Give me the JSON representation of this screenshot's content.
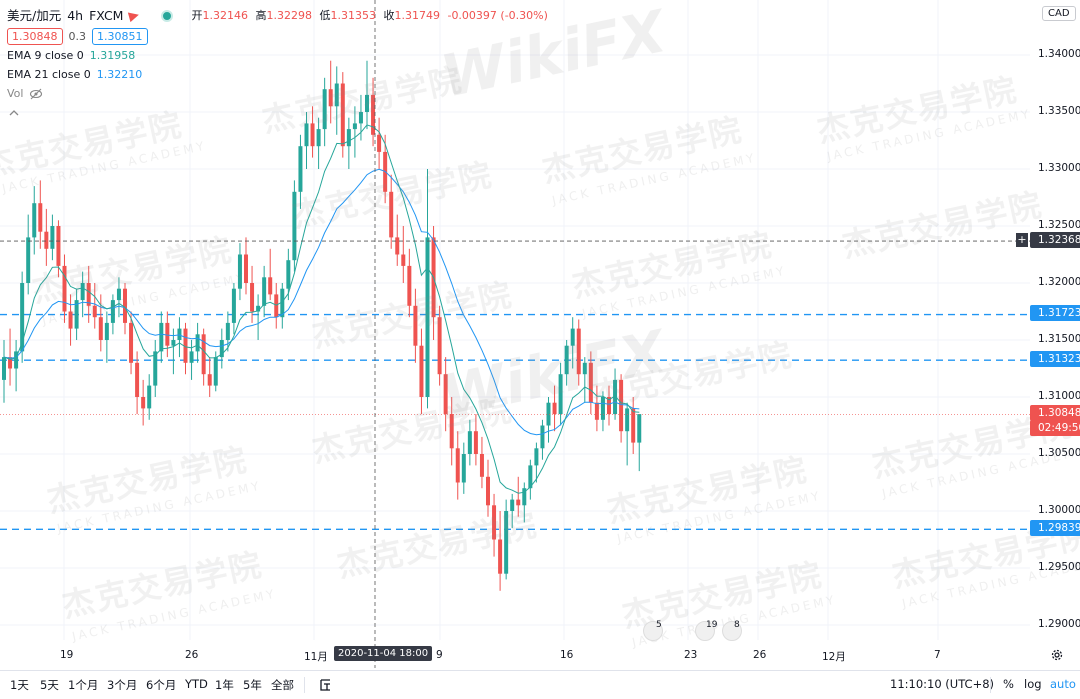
{
  "header": {
    "symbol": "美元/加元",
    "interval": "4h",
    "source": "FXCM",
    "ohlc": [
      {
        "k": "开",
        "v": "1.32146"
      },
      {
        "k": "高",
        "v": "1.32298"
      },
      {
        "k": "低",
        "v": "1.31353"
      },
      {
        "k": "收",
        "v": "1.31749"
      },
      {
        "k": "",
        "v": "-0.00397 (-0.30%)"
      }
    ]
  },
  "quote": {
    "bid": "1.30848",
    "spread": "0.3",
    "ask": "1.30851"
  },
  "indicators": {
    "ema9_label": "EMA 9 close 0",
    "ema9_value": "1.31958",
    "ema21_label": "EMA 21 close 0",
    "ema21_value": "1.32210",
    "vol_label": "Vol"
  },
  "currency": "CAD",
  "price_axis": [
    "1.34000",
    "1.33500",
    "1.33000",
    "1.32500",
    "1.32000",
    "1.31500",
    "1.31000",
    "1.30500",
    "1.30000",
    "1.29500",
    "1.29000"
  ],
  "price_labels": {
    "crosshair": "1.32368",
    "line1": "1.31723",
    "line2": "1.31323",
    "last": "1.30848",
    "countdown": "02:49:50",
    "line3": "1.29839"
  },
  "time_axis": [
    "19",
    "26",
    "11月",
    "9",
    "16",
    "23",
    "26",
    "12月",
    "7"
  ],
  "crosshair_time": "2020-11-04   18:00",
  "events": [
    "5",
    "19",
    "8"
  ],
  "bottom": {
    "ranges": [
      "1天",
      "5天",
      "1个月",
      "3个月",
      "6个月",
      "YTD",
      "1年",
      "5年",
      "全部"
    ],
    "clock": "11:10:10 (UTC+8)",
    "percent": "%",
    "log": "log",
    "auto": "auto"
  },
  "colors": {
    "up": "#26a69a",
    "down": "#ef5350",
    "ema9": "#26a69a",
    "ema21": "#2196f3",
    "hline": "#2196f3"
  },
  "watermark": {
    "cn": "杰克交易学院",
    "en": "JACK TRADING ACADEMY",
    "brand": "WikiFX"
  },
  "chart_data": {
    "type": "candlestick",
    "ylim": [
      1.2885,
      1.3425
    ],
    "hlines": [
      1.31723,
      1.31323,
      1.29839
    ],
    "crosshair_price": 1.32368,
    "last_price": 1.30848,
    "candles": [
      [
        1.3115,
        1.315,
        1.3095,
        1.3135
      ],
      [
        1.3135,
        1.316,
        1.311,
        1.3125
      ],
      [
        1.3125,
        1.315,
        1.3105,
        1.314
      ],
      [
        1.314,
        1.321,
        1.313,
        1.32
      ],
      [
        1.32,
        1.326,
        1.319,
        1.324
      ],
      [
        1.324,
        1.3285,
        1.3225,
        1.327
      ],
      [
        1.327,
        1.329,
        1.323,
        1.3245
      ],
      [
        1.3245,
        1.3265,
        1.3215,
        1.323
      ],
      [
        1.323,
        1.326,
        1.322,
        1.325
      ],
      [
        1.325,
        1.3255,
        1.3205,
        1.3215
      ],
      [
        1.3215,
        1.3225,
        1.3165,
        1.3175
      ],
      [
        1.3175,
        1.319,
        1.3145,
        1.316
      ],
      [
        1.316,
        1.3195,
        1.315,
        1.3185
      ],
      [
        1.3185,
        1.321,
        1.317,
        1.32
      ],
      [
        1.32,
        1.3215,
        1.3165,
        1.318
      ],
      [
        1.318,
        1.32,
        1.316,
        1.317
      ],
      [
        1.317,
        1.319,
        1.314,
        1.315
      ],
      [
        1.315,
        1.3175,
        1.313,
        1.3165
      ],
      [
        1.3165,
        1.319,
        1.3155,
        1.3185
      ],
      [
        1.3185,
        1.3205,
        1.317,
        1.3195
      ],
      [
        1.3195,
        1.32,
        1.3155,
        1.3165
      ],
      [
        1.3165,
        1.3175,
        1.312,
        1.313
      ],
      [
        1.313,
        1.314,
        1.3085,
        1.31
      ],
      [
        1.31,
        1.3115,
        1.3075,
        1.309
      ],
      [
        1.309,
        1.312,
        1.308,
        1.311
      ],
      [
        1.311,
        1.315,
        1.31,
        1.314
      ],
      [
        1.314,
        1.3175,
        1.313,
        1.3165
      ],
      [
        1.3165,
        1.3175,
        1.3135,
        1.3145
      ],
      [
        1.3145,
        1.316,
        1.312,
        1.315
      ],
      [
        1.315,
        1.317,
        1.3135,
        1.316
      ],
      [
        1.316,
        1.3165,
        1.312,
        1.313
      ],
      [
        1.313,
        1.315,
        1.3115,
        1.314
      ],
      [
        1.314,
        1.3165,
        1.313,
        1.3155
      ],
      [
        1.3155,
        1.316,
        1.311,
        1.312
      ],
      [
        1.312,
        1.3135,
        1.31,
        1.311
      ],
      [
        1.311,
        1.314,
        1.3105,
        1.3135
      ],
      [
        1.3135,
        1.316,
        1.3125,
        1.315
      ],
      [
        1.315,
        1.3175,
        1.314,
        1.3165
      ],
      [
        1.3165,
        1.32,
        1.3155,
        1.3195
      ],
      [
        1.3195,
        1.3235,
        1.3185,
        1.3225
      ],
      [
        1.3225,
        1.324,
        1.319,
        1.32
      ],
      [
        1.32,
        1.3215,
        1.3165,
        1.3175
      ],
      [
        1.3175,
        1.319,
        1.315,
        1.318
      ],
      [
        1.318,
        1.3215,
        1.317,
        1.3205
      ],
      [
        1.3205,
        1.323,
        1.3185,
        1.319
      ],
      [
        1.319,
        1.32,
        1.316,
        1.317
      ],
      [
        1.317,
        1.32,
        1.316,
        1.3195
      ],
      [
        1.3195,
        1.323,
        1.3185,
        1.322
      ],
      [
        1.322,
        1.329,
        1.321,
        1.328
      ],
      [
        1.328,
        1.333,
        1.3265,
        1.332
      ],
      [
        1.332,
        1.335,
        1.33,
        1.334
      ],
      [
        1.334,
        1.3355,
        1.331,
        1.332
      ],
      [
        1.332,
        1.3345,
        1.33,
        1.3335
      ],
      [
        1.3335,
        1.338,
        1.332,
        1.337
      ],
      [
        1.337,
        1.3395,
        1.334,
        1.3355
      ],
      [
        1.3355,
        1.339,
        1.333,
        1.3375
      ],
      [
        1.3375,
        1.3385,
        1.331,
        1.332
      ],
      [
        1.332,
        1.3345,
        1.33,
        1.3335
      ],
      [
        1.3335,
        1.3355,
        1.331,
        1.334
      ],
      [
        1.334,
        1.3365,
        1.3325,
        1.335
      ],
      [
        1.335,
        1.3395,
        1.3335,
        1.3365
      ],
      [
        1.3365,
        1.338,
        1.332,
        1.333
      ],
      [
        1.333,
        1.3345,
        1.33,
        1.3315
      ],
      [
        1.3315,
        1.333,
        1.327,
        1.328
      ],
      [
        1.328,
        1.3295,
        1.323,
        1.324
      ],
      [
        1.324,
        1.326,
        1.3215,
        1.3225
      ],
      [
        1.3225,
        1.325,
        1.32,
        1.3215
      ],
      [
        1.3215,
        1.323,
        1.317,
        1.318
      ],
      [
        1.318,
        1.3195,
        1.313,
        1.3145
      ],
      [
        1.3145,
        1.316,
        1.3085,
        1.31
      ],
      [
        1.31,
        1.33,
        1.309,
        1.324
      ],
      [
        1.324,
        1.325,
        1.315,
        1.317
      ],
      [
        1.317,
        1.318,
        1.311,
        1.312
      ],
      [
        1.312,
        1.3135,
        1.307,
        1.3085
      ],
      [
        1.3085,
        1.31,
        1.304,
        1.3055
      ],
      [
        1.3055,
        1.307,
        1.301,
        1.3025
      ],
      [
        1.3025,
        1.306,
        1.3015,
        1.305
      ],
      [
        1.305,
        1.308,
        1.304,
        1.307
      ],
      [
        1.307,
        1.3085,
        1.304,
        1.305
      ],
      [
        1.305,
        1.3065,
        1.302,
        1.303
      ],
      [
        1.303,
        1.3045,
        1.2995,
        1.3005
      ],
      [
        1.3005,
        1.3015,
        1.296,
        1.2975
      ],
      [
        1.2975,
        1.3,
        1.293,
        1.2945
      ],
      [
        1.2945,
        1.301,
        1.294,
        1.3
      ],
      [
        1.3,
        1.3015,
        1.2985,
        1.301
      ],
      [
        1.301,
        1.303,
        1.2995,
        1.3005
      ],
      [
        1.3005,
        1.3025,
        1.299,
        1.302
      ],
      [
        1.302,
        1.3045,
        1.301,
        1.304
      ],
      [
        1.304,
        1.306,
        1.3025,
        1.3055
      ],
      [
        1.3055,
        1.308,
        1.3045,
        1.3075
      ],
      [
        1.3075,
        1.31,
        1.306,
        1.3095
      ],
      [
        1.3095,
        1.311,
        1.307,
        1.3085
      ],
      [
        1.3085,
        1.313,
        1.3075,
        1.312
      ],
      [
        1.312,
        1.315,
        1.311,
        1.3145
      ],
      [
        1.3145,
        1.317,
        1.3125,
        1.316
      ],
      [
        1.316,
        1.3168,
        1.311,
        1.312
      ],
      [
        1.312,
        1.3135,
        1.3095,
        1.313
      ],
      [
        1.313,
        1.314,
        1.3085,
        1.3095
      ],
      [
        1.3095,
        1.311,
        1.307,
        1.308
      ],
      [
        1.308,
        1.3105,
        1.307,
        1.31
      ],
      [
        1.31,
        1.311,
        1.3075,
        1.3085
      ],
      [
        1.3085,
        1.3125,
        1.308,
        1.3115
      ],
      [
        1.3115,
        1.312,
        1.306,
        1.307
      ],
      [
        1.307,
        1.3095,
        1.304,
        1.309
      ],
      [
        1.309,
        1.31,
        1.305,
        1.306
      ],
      [
        1.306,
        1.3085,
        1.3035,
        1.3085
      ]
    ]
  }
}
